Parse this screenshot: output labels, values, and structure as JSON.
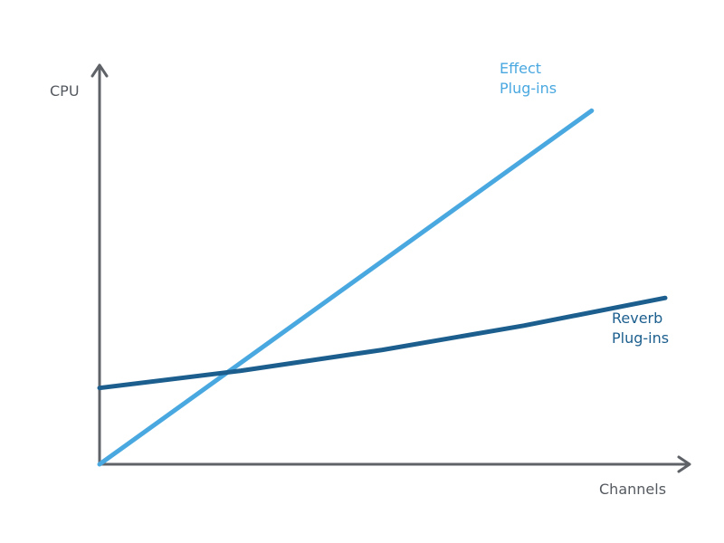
{
  "chart_data": {
    "type": "line",
    "title": "",
    "xlabel": "Channels",
    "ylabel": "CPU",
    "grid": false,
    "legend": "inline-labels",
    "xlim": [
      0,
      100
    ],
    "ylim": [
      0,
      100
    ],
    "series": [
      {
        "name": "Effect Plug-ins",
        "label_lines": [
          "Effect",
          "Plug-ins"
        ],
        "color": "#4aa8e0",
        "x": [
          0,
          87
        ],
        "y": [
          0,
          102
        ]
      },
      {
        "name": "Reverb Plug-ins",
        "label_lines": [
          "Reverb",
          "Plug-ins"
        ],
        "color": "#1c5f8e",
        "x": [
          0,
          25,
          50,
          75,
          100
        ],
        "y": [
          22,
          27,
          33,
          40,
          48
        ]
      }
    ]
  },
  "axis_color": "#5f6368"
}
